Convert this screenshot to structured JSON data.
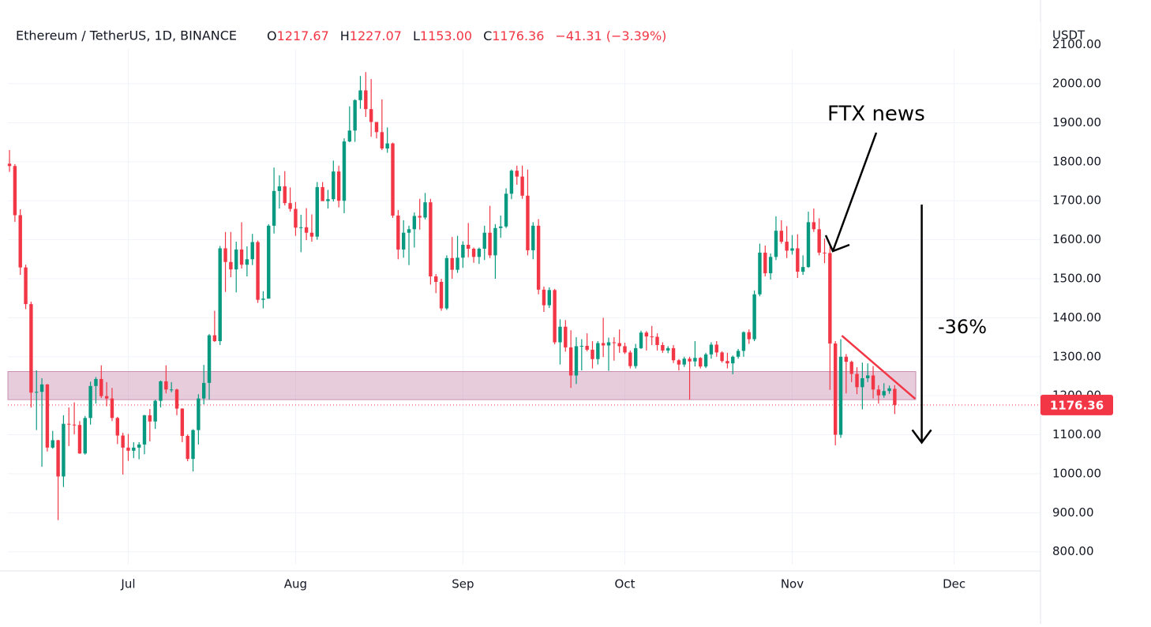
{
  "chart_data": {
    "type": "candlestick",
    "title": "Ethereum / TetherUS, 1D, BINANCE",
    "ohlc_header": [
      {
        "label": "O",
        "value": "1217.67"
      },
      {
        "label": "H",
        "value": "1227.07"
      },
      {
        "label": "L",
        "value": "1153.00"
      },
      {
        "label": "C",
        "value": "1176.36"
      }
    ],
    "change": "−41.31 (−3.39%)",
    "currency": "USDT",
    "up_color": "#089981",
    "down_color": "#f23645",
    "ylim": [
      767,
      2154
    ],
    "yticks": [
      {
        "value": 800,
        "label": "800.00"
      },
      {
        "value": 900,
        "label": "900.00"
      },
      {
        "value": 1000,
        "label": "1000.00"
      },
      {
        "value": 1100,
        "label": "1100.00"
      },
      {
        "value": 1200,
        "label": "1200.00"
      },
      {
        "value": 1300,
        "label": "1300.00"
      },
      {
        "value": 1400,
        "label": "1400.00"
      },
      {
        "value": 1500,
        "label": "1500.00"
      },
      {
        "value": 1600,
        "label": "1600.00"
      },
      {
        "value": 1700,
        "label": "1700.00"
      },
      {
        "value": 1800,
        "label": "1800.00"
      },
      {
        "value": 1900,
        "label": "1900.00"
      },
      {
        "value": 2000,
        "label": "2000.00"
      },
      {
        "value": 2100,
        "label": "2100.00"
      }
    ],
    "xlim": [
      -0.3,
      191
    ],
    "xticks": [
      {
        "value": 22,
        "label": "Jul"
      },
      {
        "value": 53,
        "label": "Aug"
      },
      {
        "value": 84,
        "label": "Sep"
      },
      {
        "value": 114,
        "label": "Oct"
      },
      {
        "value": 145,
        "label": "Nov"
      },
      {
        "value": 175,
        "label": "Dec"
      }
    ],
    "grid": true,
    "candles": [
      [
        1795,
        1830,
        1774,
        1789
      ],
      [
        1789,
        1794,
        1646,
        1663
      ],
      [
        1663,
        1678,
        1510,
        1529
      ],
      [
        1529,
        1536,
        1422,
        1435
      ],
      [
        1435,
        1441,
        1170,
        1208
      ],
      [
        1208,
        1265,
        1112,
        1210
      ],
      [
        1210,
        1245,
        1018,
        1229
      ],
      [
        1229,
        1230,
        1057,
        1067
      ],
      [
        1067,
        1110,
        1064,
        1086
      ],
      [
        1086,
        1087,
        881,
        993
      ],
      [
        993,
        1150,
        966,
        1128
      ],
      [
        1128,
        1170,
        1071,
        1126
      ],
      [
        1126,
        1183,
        1101,
        1125
      ],
      [
        1125,
        1135,
        1051,
        1052
      ],
      [
        1052,
        1148,
        1049,
        1143
      ],
      [
        1143,
        1236,
        1126,
        1225
      ],
      [
        1225,
        1248,
        1180,
        1243
      ],
      [
        1243,
        1278,
        1194,
        1199
      ],
      [
        1199,
        1235,
        1173,
        1193
      ],
      [
        1193,
        1220,
        1135,
        1143
      ],
      [
        1143,
        1146,
        1076,
        1098
      ],
      [
        1098,
        1105,
        998,
        1067
      ],
      [
        1067,
        1102,
        1033,
        1059
      ],
      [
        1059,
        1081,
        1040,
        1067
      ],
      [
        1067,
        1081,
        1037,
        1075
      ],
      [
        1075,
        1151,
        1050,
        1150
      ],
      [
        1150,
        1166,
        1083,
        1134
      ],
      [
        1134,
        1190,
        1115,
        1187
      ],
      [
        1187,
        1239,
        1170,
        1237
      ],
      [
        1237,
        1278,
        1206,
        1216
      ],
      [
        1216,
        1235,
        1209,
        1216
      ],
      [
        1216,
        1218,
        1150,
        1167
      ],
      [
        1167,
        1168,
        1081,
        1097
      ],
      [
        1097,
        1101,
        1032,
        1038
      ],
      [
        1038,
        1114,
        1006,
        1112
      ],
      [
        1112,
        1204,
        1075,
        1193
      ],
      [
        1193,
        1279,
        1178,
        1233
      ],
      [
        1233,
        1358,
        1190,
        1355
      ],
      [
        1355,
        1418,
        1338,
        1340
      ],
      [
        1340,
        1584,
        1330,
        1578
      ],
      [
        1578,
        1620,
        1466,
        1543
      ],
      [
        1543,
        1620,
        1504,
        1524
      ],
      [
        1524,
        1595,
        1465,
        1575
      ],
      [
        1575,
        1645,
        1526,
        1536
      ],
      [
        1536,
        1583,
        1506,
        1550
      ],
      [
        1550,
        1615,
        1535,
        1594
      ],
      [
        1594,
        1598,
        1438,
        1446
      ],
      [
        1446,
        1468,
        1424,
        1449
      ],
      [
        1449,
        1640,
        1449,
        1636
      ],
      [
        1636,
        1785,
        1616,
        1725
      ],
      [
        1725,
        1765,
        1680,
        1737
      ],
      [
        1737,
        1776,
        1688,
        1694
      ],
      [
        1694,
        1734,
        1672,
        1679
      ],
      [
        1679,
        1697,
        1610,
        1631
      ],
      [
        1631,
        1664,
        1568,
        1632
      ],
      [
        1632,
        1681,
        1599,
        1618
      ],
      [
        1618,
        1665,
        1595,
        1608
      ],
      [
        1608,
        1748,
        1600,
        1735
      ],
      [
        1735,
        1748,
        1700,
        1699
      ],
      [
        1699,
        1728,
        1680,
        1704
      ],
      [
        1704,
        1803,
        1698,
        1775
      ],
      [
        1775,
        1790,
        1683,
        1700
      ],
      [
        1700,
        1860,
        1668,
        1852
      ],
      [
        1852,
        1942,
        1850,
        1880
      ],
      [
        1880,
        1960,
        1851,
        1958
      ],
      [
        1958,
        2020,
        1936,
        1983
      ],
      [
        1983,
        2030,
        1915,
        1935
      ],
      [
        1935,
        2012,
        1864,
        1902
      ],
      [
        1902,
        1900,
        1860,
        1876
      ],
      [
        1876,
        1960,
        1830,
        1834
      ],
      [
        1834,
        1888,
        1823,
        1847
      ],
      [
        1847,
        1849,
        1656,
        1662
      ],
      [
        1662,
        1676,
        1550,
        1575
      ],
      [
        1575,
        1650,
        1554,
        1618
      ],
      [
        1618,
        1636,
        1535,
        1627
      ],
      [
        1627,
        1670,
        1580,
        1661
      ],
      [
        1661,
        1705,
        1626,
        1657
      ],
      [
        1657,
        1720,
        1652,
        1696
      ],
      [
        1696,
        1705,
        1485,
        1506
      ],
      [
        1506,
        1512,
        1463,
        1492
      ],
      [
        1492,
        1500,
        1418,
        1424
      ],
      [
        1424,
        1560,
        1420,
        1553
      ],
      [
        1553,
        1607,
        1500,
        1523
      ],
      [
        1523,
        1610,
        1515,
        1554
      ],
      [
        1554,
        1596,
        1528,
        1587
      ],
      [
        1587,
        1643,
        1555,
        1577
      ],
      [
        1577,
        1580,
        1541,
        1556
      ],
      [
        1556,
        1580,
        1538,
        1577
      ],
      [
        1577,
        1636,
        1548,
        1618
      ],
      [
        1618,
        1687,
        1553,
        1560
      ],
      [
        1560,
        1640,
        1500,
        1630
      ],
      [
        1630,
        1662,
        1605,
        1634
      ],
      [
        1634,
        1732,
        1630,
        1718
      ],
      [
        1718,
        1780,
        1704,
        1777
      ],
      [
        1777,
        1790,
        1741,
        1762
      ],
      [
        1762,
        1790,
        1705,
        1713
      ],
      [
        1713,
        1780,
        1560,
        1573
      ],
      [
        1573,
        1645,
        1550,
        1636
      ],
      [
        1636,
        1653,
        1460,
        1472
      ],
      [
        1472,
        1480,
        1415,
        1432
      ],
      [
        1432,
        1478,
        1425,
        1471
      ],
      [
        1471,
        1474,
        1332,
        1337
      ],
      [
        1337,
        1396,
        1280,
        1377
      ],
      [
        1377,
        1394,
        1313,
        1324
      ],
      [
        1324,
        1368,
        1220,
        1252
      ],
      [
        1252,
        1350,
        1230,
        1327
      ],
      [
        1327,
        1345,
        1265,
        1328
      ],
      [
        1328,
        1360,
        1314,
        1318
      ],
      [
        1318,
        1340,
        1270,
        1294
      ],
      [
        1294,
        1340,
        1280,
        1335
      ],
      [
        1335,
        1400,
        1299,
        1329
      ],
      [
        1329,
        1349,
        1264,
        1337
      ],
      [
        1337,
        1350,
        1290,
        1335
      ],
      [
        1335,
        1370,
        1310,
        1327
      ],
      [
        1327,
        1336,
        1307,
        1311
      ],
      [
        1311,
        1316,
        1270,
        1276
      ],
      [
        1276,
        1333,
        1270,
        1322
      ],
      [
        1322,
        1367,
        1320,
        1362
      ],
      [
        1362,
        1366,
        1316,
        1352
      ],
      [
        1352,
        1379,
        1330,
        1351
      ],
      [
        1351,
        1360,
        1316,
        1330
      ],
      [
        1330,
        1337,
        1310,
        1316
      ],
      [
        1316,
        1327,
        1309,
        1322
      ],
      [
        1322,
        1330,
        1284,
        1291
      ],
      [
        1291,
        1294,
        1265,
        1280
      ],
      [
        1280,
        1300,
        1274,
        1295
      ],
      [
        1295,
        1300,
        1190,
        1288
      ],
      [
        1288,
        1340,
        1275,
        1297
      ],
      [
        1297,
        1299,
        1270,
        1275
      ],
      [
        1275,
        1310,
        1271,
        1306
      ],
      [
        1306,
        1337,
        1295,
        1331
      ],
      [
        1331,
        1340,
        1300,
        1311
      ],
      [
        1311,
        1314,
        1285,
        1289
      ],
      [
        1289,
        1310,
        1270,
        1283
      ],
      [
        1283,
        1303,
        1255,
        1300
      ],
      [
        1300,
        1320,
        1295,
        1315
      ],
      [
        1315,
        1365,
        1300,
        1363
      ],
      [
        1363,
        1370,
        1333,
        1345
      ],
      [
        1345,
        1470,
        1340,
        1460
      ],
      [
        1460,
        1590,
        1455,
        1567
      ],
      [
        1567,
        1585,
        1506,
        1514
      ],
      [
        1514,
        1565,
        1498,
        1556
      ],
      [
        1556,
        1660,
        1548,
        1623
      ],
      [
        1623,
        1650,
        1590,
        1595
      ],
      [
        1595,
        1635,
        1553,
        1572
      ],
      [
        1572,
        1612,
        1562,
        1578
      ],
      [
        1578,
        1614,
        1502,
        1518
      ],
      [
        1518,
        1560,
        1510,
        1530
      ],
      [
        1530,
        1672,
        1528,
        1645
      ],
      [
        1645,
        1680,
        1620,
        1627
      ],
      [
        1627,
        1655,
        1560,
        1567
      ],
      [
        1567,
        1603,
        1540,
        1566
      ],
      [
        1566,
        1585,
        1215,
        1334
      ],
      [
        1334,
        1340,
        1073,
        1100
      ],
      [
        1100,
        1345,
        1092,
        1300
      ],
      [
        1300,
        1307,
        1206,
        1287
      ],
      [
        1287,
        1290,
        1235,
        1256
      ],
      [
        1256,
        1273,
        1204,
        1222
      ],
      [
        1222,
        1285,
        1165,
        1245
      ],
      [
        1245,
        1283,
        1235,
        1252
      ],
      [
        1252,
        1276,
        1193,
        1216
      ],
      [
        1216,
        1227,
        1180,
        1201
      ],
      [
        1201,
        1232,
        1195,
        1212
      ],
      [
        1212,
        1226,
        1205,
        1219
      ],
      [
        1217.67,
        1227.07,
        1153,
        1176.36
      ]
    ],
    "last_price": 1176.36,
    "zone": [
      1190,
      1262
    ],
    "zone_color": "#c98fb0",
    "trendline": {
      "x": [
        154.2,
        167.8
      ],
      "y": [
        1354,
        1192
      ],
      "color": "#f23645"
    },
    "drop_arrow": {
      "x": 169,
      "from": 1690,
      "to": 1080
    },
    "annotations": [
      "FTX news",
      "-36%"
    ]
  }
}
